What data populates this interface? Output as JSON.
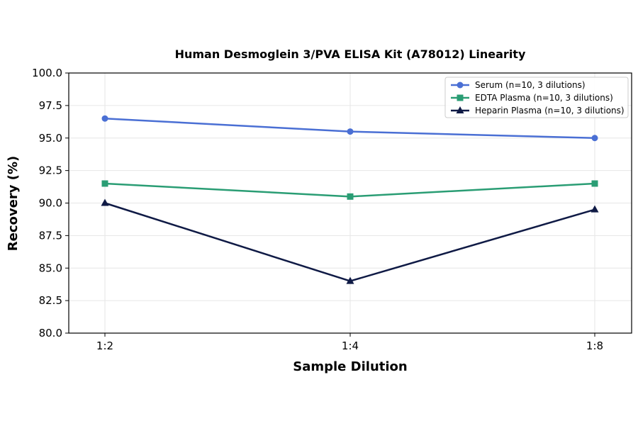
{
  "chart_data": {
    "type": "line",
    "title": "Human Desmoglein 3/PVA ELISA Kit (A78012) Linearity",
    "xlabel": "Sample Dilution",
    "ylabel": "Recovery (%)",
    "categories": [
      "1:2",
      "1:4",
      "1:8"
    ],
    "ylim": [
      80.0,
      100.0
    ],
    "yticks": [
      "80.0",
      "82.5",
      "85.0",
      "87.5",
      "90.0",
      "92.5",
      "95.0",
      "97.5",
      "100.0"
    ],
    "grid": true,
    "legend_position": "top-right",
    "series": [
      {
        "name": "Serum (n=10, 3 dilutions)",
        "values": [
          96.5,
          95.5,
          95.0
        ],
        "color": "#4a6fd4",
        "marker": "circle"
      },
      {
        "name": "EDTA Plasma (n=10, 3 dilutions)",
        "values": [
          91.5,
          90.5,
          91.5
        ],
        "color": "#2a9d74",
        "marker": "square"
      },
      {
        "name": "Heparin Plasma (n=10, 3 dilutions)",
        "values": [
          90.0,
          84.0,
          89.5
        ],
        "color": "#0f1a45",
        "marker": "triangle"
      }
    ]
  }
}
